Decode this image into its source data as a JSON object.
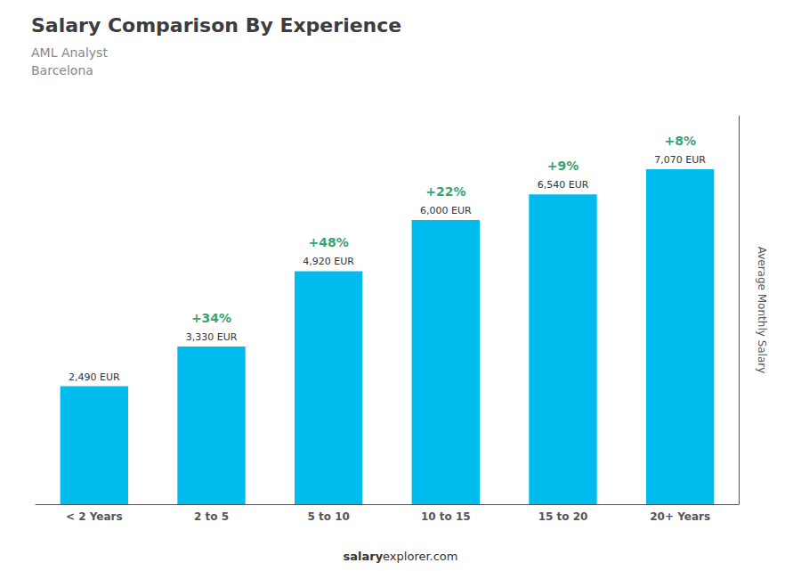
{
  "chart_data": {
    "type": "bar",
    "title": "Salary Comparison By Experience",
    "subtitle": [
      "AML Analyst",
      "Barcelona"
    ],
    "categories": [
      "< 2 Years",
      "2 to 5",
      "5 to 10",
      "10 to 15",
      "15 to 20",
      "20+ Years"
    ],
    "values": [
      2490,
      3330,
      4920,
      6000,
      6540,
      7070
    ],
    "value_labels": [
      "2,490 EUR",
      "3,330 EUR",
      "4,920 EUR",
      "6,000 EUR",
      "6,540 EUR",
      "7,070 EUR"
    ],
    "data_labels": true,
    "color": "#00bbee",
    "ylabel": "Average Monthly Salary",
    "ylim": [
      0,
      8200
    ],
    "yticks": [],
    "tick_labels": "x",
    "grid": false,
    "annotations": [
      "+34%",
      "+48%",
      "+22%",
      "+9%",
      "+8%"
    ],
    "footer": [
      "salary",
      "explorer.com"
    ]
  }
}
